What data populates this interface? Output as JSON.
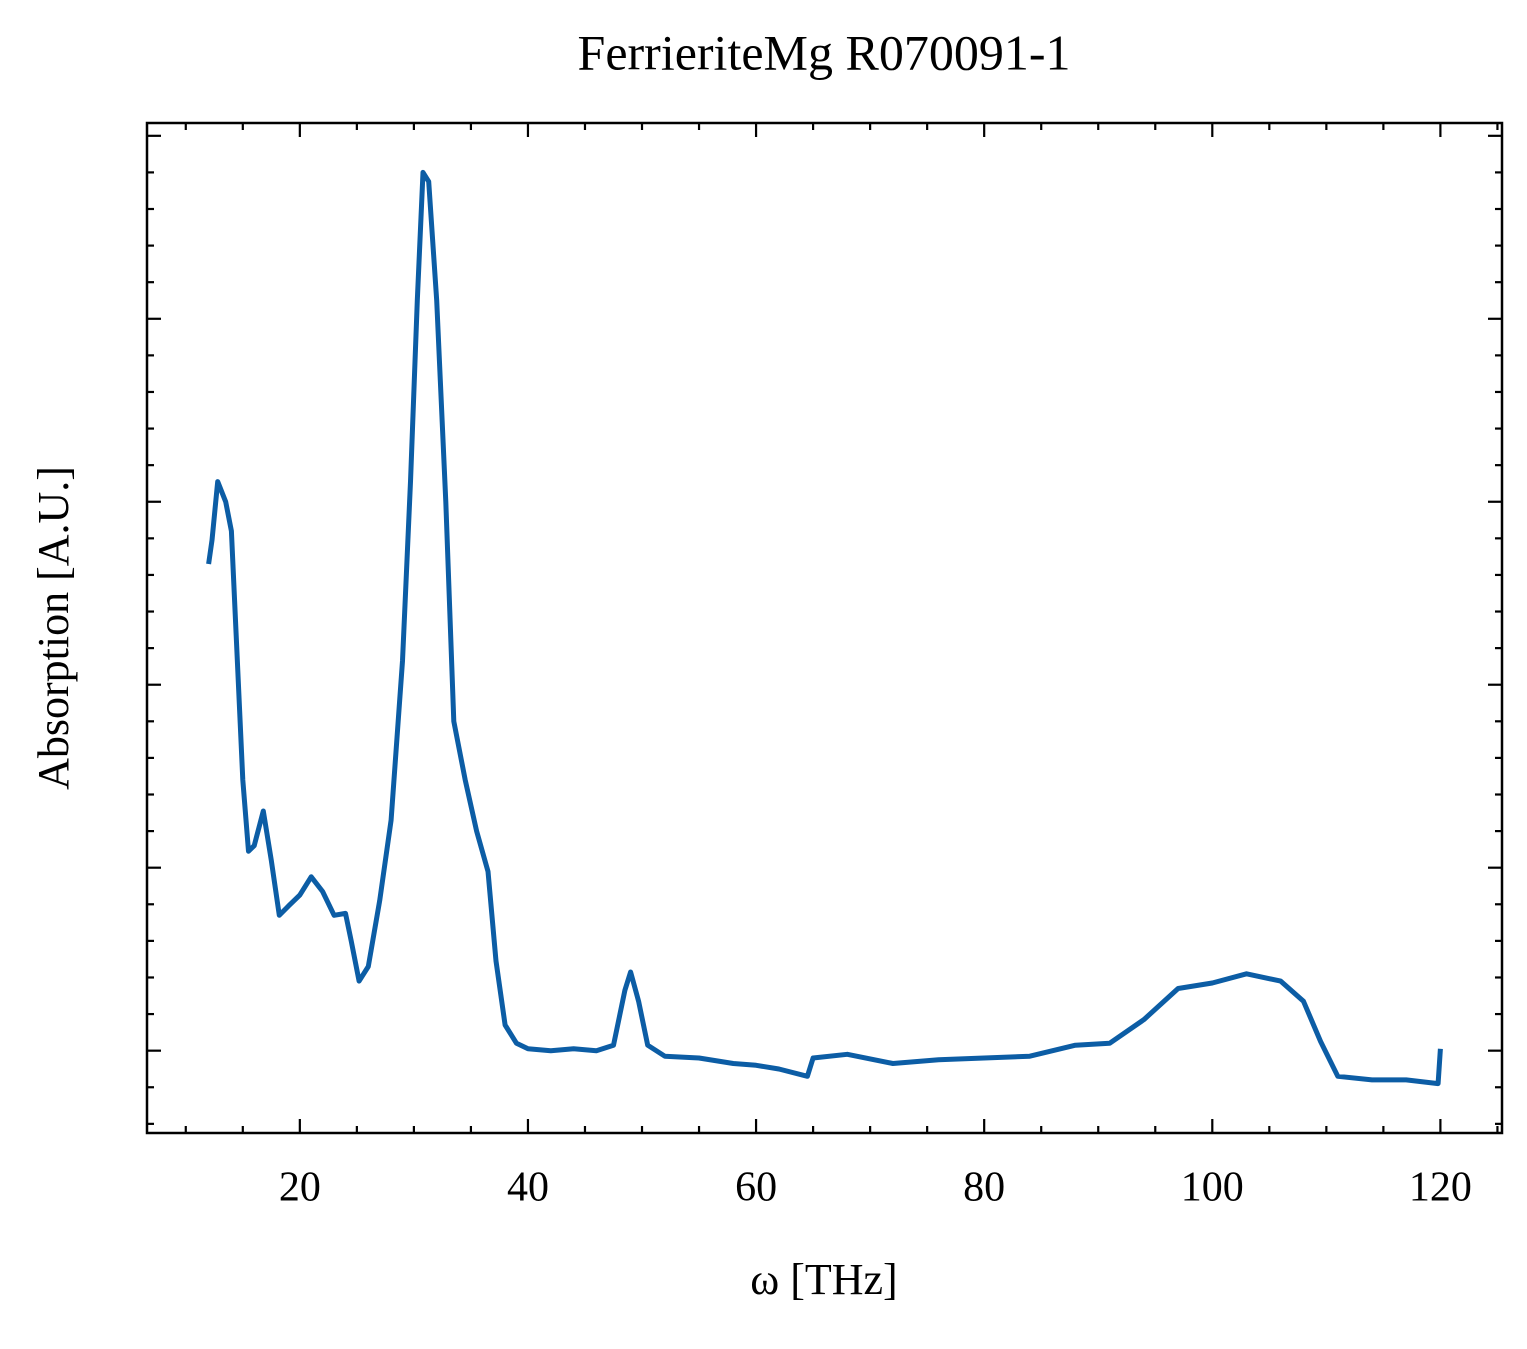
{
  "chart_data": {
    "type": "line",
    "title": "FerrieriteMg R070091-1",
    "x_label": "ω [THz]",
    "y_label": "Absorption [A.U.]",
    "xlim": [
      6.6,
      125.4
    ],
    "ylim": [
      -0.45,
      5.07
    ],
    "xticks": [
      20,
      40,
      60,
      80,
      100,
      120
    ],
    "xminorticks": [
      10,
      15,
      25,
      30,
      35,
      45,
      50,
      55,
      65,
      70,
      75,
      85,
      90,
      95,
      105,
      110,
      115,
      125
    ],
    "yticks": [
      0,
      1,
      2,
      3,
      4,
      5
    ],
    "yminorticks": [
      -0.4,
      -0.2,
      0.2,
      0.4,
      0.6,
      0.8,
      1.2,
      1.4,
      1.6,
      1.8,
      2.2,
      2.4,
      2.6,
      2.8,
      3.2,
      3.4,
      3.6,
      3.8,
      4.2,
      4.4,
      4.6,
      4.8
    ],
    "show_ytick_labels": false,
    "series": [
      {
        "color": "#0c5da5",
        "x": [
          12,
          12.3,
          12.8,
          13.5,
          14,
          15,
          15.5,
          16,
          16.8,
          17.5,
          18.2,
          19,
          20,
          21,
          22,
          23,
          24,
          24.5,
          25.2,
          26,
          27,
          28,
          29,
          29.7,
          30.3,
          30.8,
          31.3,
          32,
          32.8,
          33.5,
          34.5,
          35.5,
          36.5,
          37.2,
          38,
          39,
          40,
          42,
          44,
          46,
          47.5,
          48.5,
          49,
          49.7,
          50.5,
          52,
          55,
          58,
          60,
          62,
          64.5,
          65,
          68,
          72,
          76,
          80,
          84,
          88,
          91,
          94,
          97,
          100,
          103,
          106,
          108,
          109.5,
          111,
          114,
          117,
          119.8,
          120
        ],
        "values": [
          2.66,
          2.79,
          3.11,
          3.0,
          2.84,
          1.48,
          1.09,
          1.12,
          1.31,
          1.04,
          0.74,
          0.79,
          0.85,
          0.95,
          0.87,
          0.74,
          0.75,
          0.6,
          0.38,
          0.46,
          0.82,
          1.26,
          2.13,
          3.11,
          4.1,
          4.8,
          4.75,
          4.1,
          3.0,
          1.8,
          1.48,
          1.2,
          0.98,
          0.49,
          0.14,
          0.04,
          0.01,
          0,
          0.01,
          0,
          0.03,
          0.33,
          0.43,
          0.27,
          0.03,
          -0.03,
          -0.04,
          -0.07,
          -0.08,
          -0.1,
          -0.14,
          -0.04,
          -0.02,
          -0.07,
          -0.05,
          -0.04,
          -0.03,
          0.03,
          0.04,
          0.17,
          0.34,
          0.37,
          0.42,
          0.38,
          0.27,
          0.05,
          -0.14,
          -0.16,
          -0.16,
          -0.18,
          0.01
        ]
      }
    ]
  }
}
